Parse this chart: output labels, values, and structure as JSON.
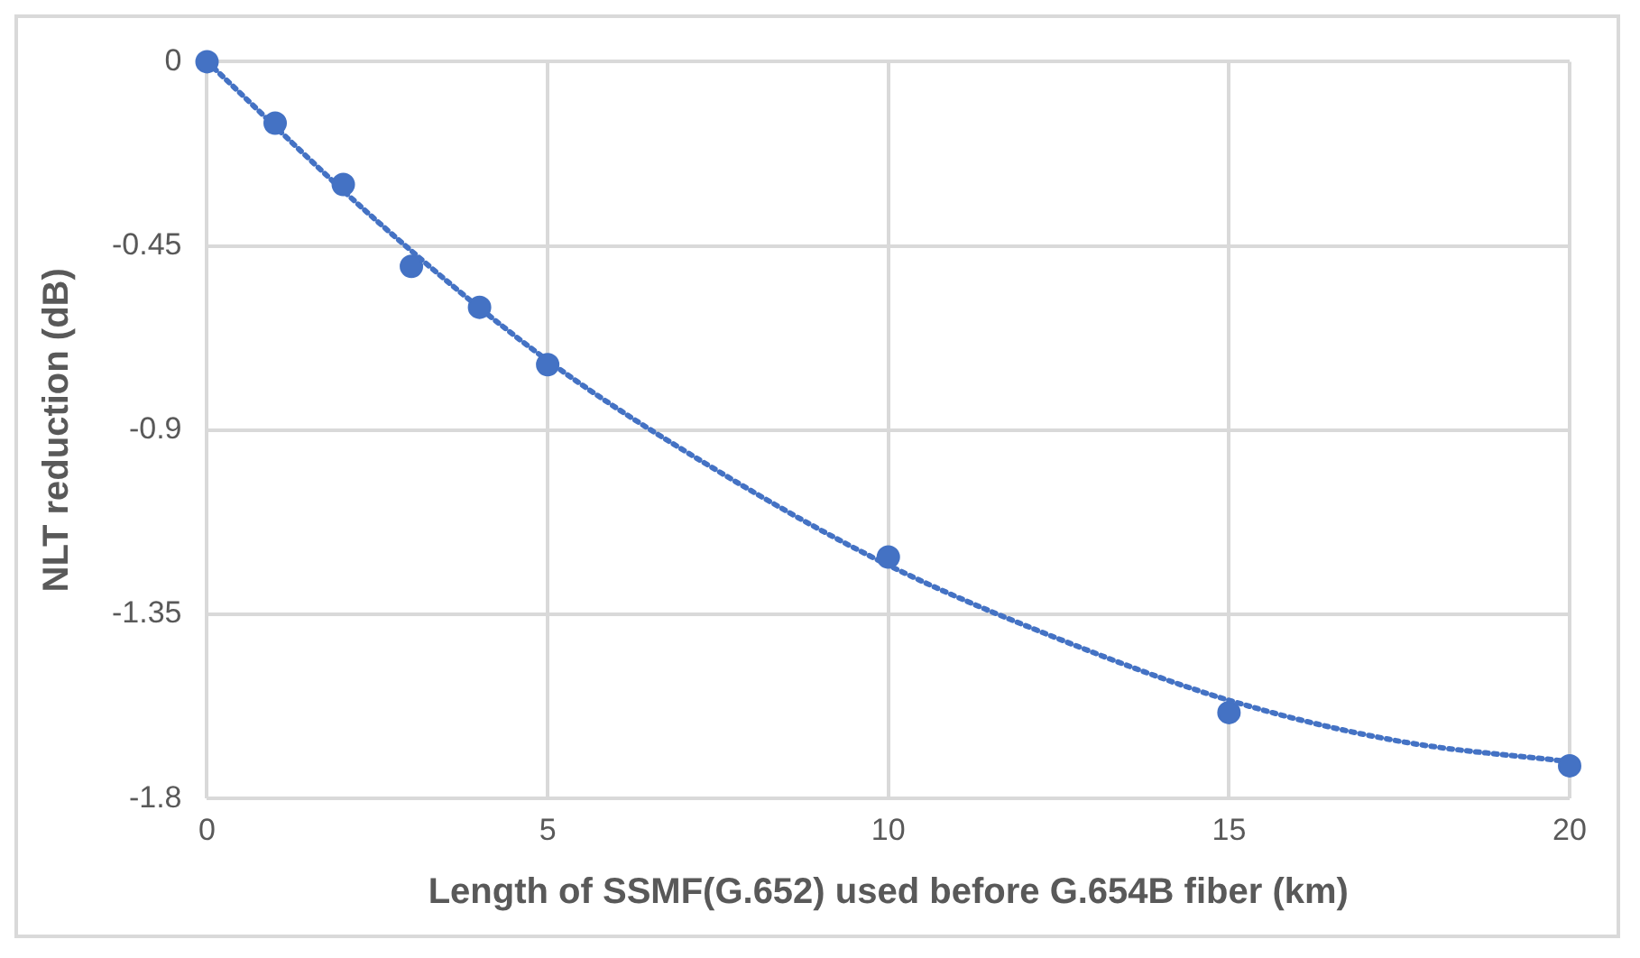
{
  "chart_data": {
    "type": "scatter",
    "xlabel": "Length of SSMF(G.652) used before G.654B fiber (km)",
    "ylabel": "NLT reduction (dB)",
    "x": [
      0,
      1,
      2,
      3,
      4,
      5,
      10,
      15,
      20
    ],
    "series": [
      {
        "color": "#4472c4",
        "marker": "circle",
        "values": [
          0,
          -0.15,
          -0.3,
          -0.5,
          -0.6,
          -0.74,
          -1.21,
          -1.59,
          -1.72
        ]
      },
      {
        "type": "line",
        "color": "#4472c4",
        "marker": "none",
        "line_style": "dotted",
        "x": [
          0,
          2.5,
          5,
          7.5,
          10,
          12.5,
          15,
          17.5,
          20
        ],
        "values": [
          0,
          -0.39,
          -0.73,
          -1.0,
          -1.23,
          -1.41,
          -1.56,
          -1.66,
          -1.71
        ]
      }
    ],
    "xlim": [
      0,
      20
    ],
    "xticks": [
      0,
      5,
      10,
      15,
      20
    ],
    "ylim": [
      -1.8,
      0
    ],
    "yticks": [
      0,
      -0.45,
      -0.9,
      -1.35,
      -1.8
    ],
    "grid": true,
    "legend": false
  }
}
